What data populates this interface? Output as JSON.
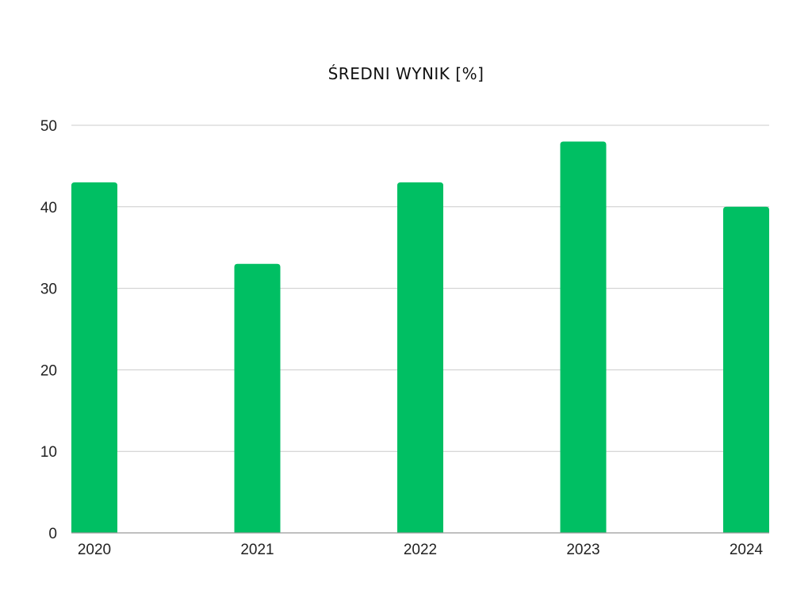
{
  "chart_data": {
    "type": "bar",
    "title": "ŚREDNI WYNIK [%]",
    "xlabel": "",
    "ylabel": "",
    "categories": [
      "2020",
      "2021",
      "2022",
      "2023",
      "2024"
    ],
    "values": [
      43,
      33,
      43,
      48,
      40
    ],
    "ylim": [
      0,
      50
    ],
    "yticks": [
      0,
      10,
      20,
      30,
      40,
      50
    ],
    "grid": true,
    "bar_color": "#00bf63",
    "legend": "none"
  }
}
